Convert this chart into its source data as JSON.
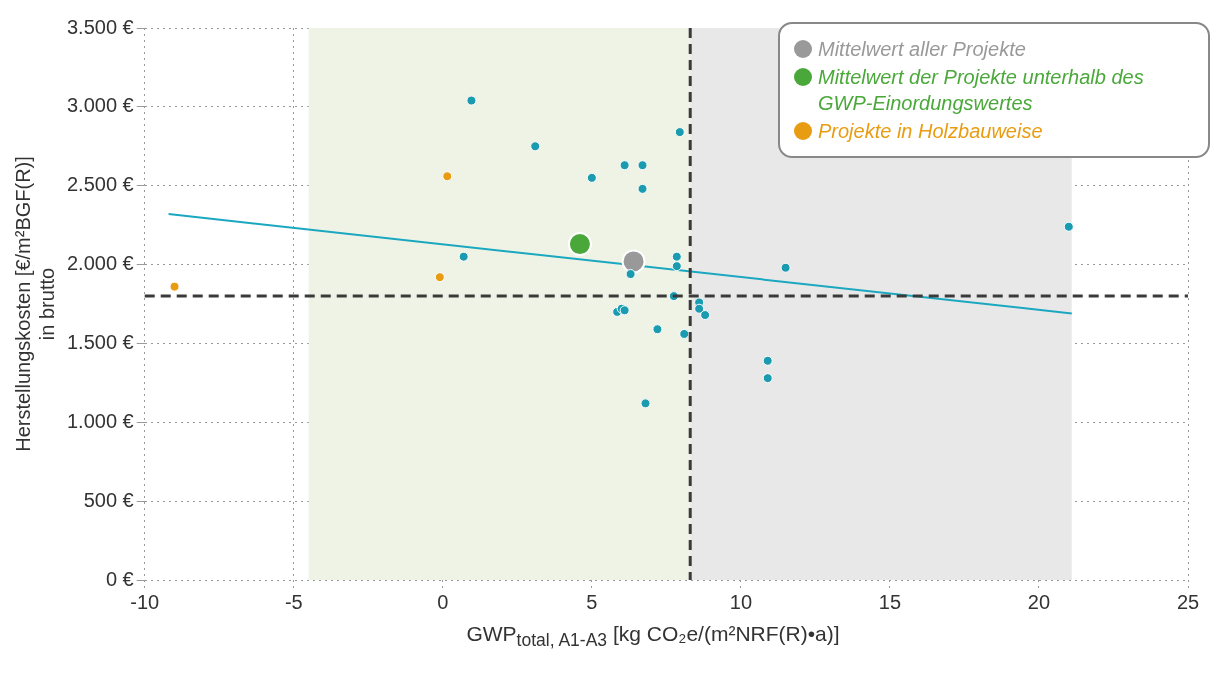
{
  "chart_data": {
    "type": "scatter",
    "xlabel": "GWP$_{total, A1-A3}$ [kg CO₂e/(m²NRF(R)•a)]",
    "ylabel": "Herstellungskosten [€/m²BGF(R)]\nin brutto",
    "xlim": [
      -10,
      25
    ],
    "xticks": [
      -10,
      -5,
      0,
      5,
      10,
      15,
      20,
      25
    ],
    "ylim": [
      0,
      3500
    ],
    "yticks": [
      {
        "value": 0,
        "label": "0 €"
      },
      {
        "value": 500,
        "label": "500 €"
      },
      {
        "value": 1000,
        "label": "1.000 €"
      },
      {
        "value": 1500,
        "label": "1.500 €"
      },
      {
        "value": 2000,
        "label": "2.000 €"
      },
      {
        "value": 2500,
        "label": "2.500 €"
      },
      {
        "value": 3000,
        "label": "3.000 €"
      },
      {
        "value": 3500,
        "label": "3.500 €"
      }
    ],
    "grid": true,
    "legend": "top right",
    "marker": "circle",
    "bands": [
      {
        "axis": "x",
        "from": -4.5,
        "to": 8.3,
        "color": "#eef3e6"
      },
      {
        "axis": "x",
        "from": 8.3,
        "to": 21.1,
        "color": "#e8e8e8"
      }
    ],
    "ref_lines": [
      {
        "axis": "x",
        "value": 8.3,
        "color": "#3a3a3a",
        "line_style": "dashed"
      },
      {
        "axis": "y",
        "value": 1800,
        "color": "#3a3a3a",
        "line_style": "dashed"
      }
    ],
    "series": [
      {
        "type": "line",
        "color": "#1aa7c0",
        "x": [
          -9.2,
          21.1
        ],
        "values": [
          2320,
          1690
        ],
        "marker": "none"
      },
      {
        "color": "#1a9bb0",
        "x": [
          0.96,
          3.1,
          0.7,
          5.0,
          6.1,
          6.7,
          6.7,
          7.95,
          7.85,
          7.85,
          6.3,
          7.75,
          5.85,
          6.0,
          6.1,
          7.2,
          8.1,
          6.8,
          8.6,
          8.6,
          8.8,
          10.9,
          10.9,
          11.5,
          21.0
        ],
        "values": [
          3040,
          2750,
          2050,
          2550,
          2630,
          2630,
          2480,
          2840,
          2050,
          1990,
          1940,
          1800,
          1700,
          1720,
          1710,
          1590,
          1560,
          1120,
          1760,
          1720,
          1680,
          1390,
          1280,
          1980,
          2240
        ]
      },
      {
        "name": "Projekte in Holzbauweise",
        "color": "#e89c12",
        "x": [
          -9.0,
          -0.1,
          0.15
        ],
        "values": [
          1860,
          1920,
          2560
        ]
      },
      {
        "name": "Mittelwert der Projekte unterhalb des GWP-Einordungswertes",
        "color": "#4aa83a",
        "x": [
          4.6
        ],
        "values": [
          2130
        ]
      },
      {
        "name": "Mittelwert aller Projekte",
        "color": "#999999",
        "x": [
          6.4
        ],
        "values": [
          2020
        ]
      }
    ]
  }
}
